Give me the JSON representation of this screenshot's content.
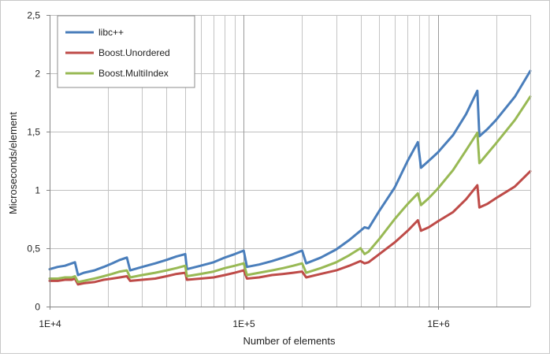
{
  "chart_data": {
    "type": "line",
    "title": "",
    "xlabel": "Number of elements",
    "ylabel": "Microseconds/element",
    "x_scale": "log",
    "xlim": [
      10000,
      3000000
    ],
    "ylim": [
      0,
      2.5
    ],
    "x_ticks": [
      {
        "value": 10000,
        "label": "1E+4"
      },
      {
        "value": 100000,
        "label": "1E+5"
      },
      {
        "value": 1000000,
        "label": "1E+6"
      }
    ],
    "y_ticks": [
      {
        "value": 0,
        "label": "0"
      },
      {
        "value": 0.5,
        "label": "0,5"
      },
      {
        "value": 1,
        "label": "1"
      },
      {
        "value": 1.5,
        "label": "1,5"
      },
      {
        "value": 2,
        "label": "2"
      },
      {
        "value": 2.5,
        "label": "2,5"
      }
    ],
    "grid": {
      "x_major": true,
      "x_minor": true,
      "y_major": true
    },
    "legend_position": "top-left",
    "series": [
      {
        "name": "libc++",
        "color": "#4a7ebb",
        "points": [
          [
            10000,
            0.32
          ],
          [
            11000,
            0.34
          ],
          [
            12000,
            0.35
          ],
          [
            13000,
            0.37
          ],
          [
            13500,
            0.38
          ],
          [
            14000,
            0.27
          ],
          [
            15000,
            0.29
          ],
          [
            17000,
            0.31
          ],
          [
            19000,
            0.34
          ],
          [
            21000,
            0.37
          ],
          [
            23000,
            0.4
          ],
          [
            25000,
            0.42
          ],
          [
            26000,
            0.31
          ],
          [
            30000,
            0.34
          ],
          [
            35000,
            0.37
          ],
          [
            40000,
            0.4
          ],
          [
            45000,
            0.43
          ],
          [
            50000,
            0.45
          ],
          [
            51000,
            0.32
          ],
          [
            60000,
            0.35
          ],
          [
            70000,
            0.38
          ],
          [
            80000,
            0.42
          ],
          [
            90000,
            0.45
          ],
          [
            100000,
            0.48
          ],
          [
            104000,
            0.34
          ],
          [
            120000,
            0.36
          ],
          [
            140000,
            0.39
          ],
          [
            160000,
            0.42
          ],
          [
            180000,
            0.45
          ],
          [
            200000,
            0.48
          ],
          [
            210000,
            0.37
          ],
          [
            250000,
            0.42
          ],
          [
            300000,
            0.49
          ],
          [
            350000,
            0.57
          ],
          [
            400000,
            0.65
          ],
          [
            420000,
            0.68
          ],
          [
            440000,
            0.67
          ],
          [
            500000,
            0.82
          ],
          [
            600000,
            1.02
          ],
          [
            700000,
            1.25
          ],
          [
            790000,
            1.41
          ],
          [
            820000,
            1.19
          ],
          [
            900000,
            1.25
          ],
          [
            1000000,
            1.32
          ],
          [
            1200000,
            1.47
          ],
          [
            1400000,
            1.65
          ],
          [
            1600000,
            1.85
          ],
          [
            1640000,
            1.46
          ],
          [
            1800000,
            1.52
          ],
          [
            2000000,
            1.6
          ],
          [
            2500000,
            1.8
          ],
          [
            3000000,
            2.02
          ]
        ]
      },
      {
        "name": "Boost.Unordered",
        "color": "#be4b48",
        "points": [
          [
            10000,
            0.22
          ],
          [
            11000,
            0.22
          ],
          [
            12000,
            0.23
          ],
          [
            13000,
            0.23
          ],
          [
            13500,
            0.24
          ],
          [
            14000,
            0.19
          ],
          [
            15000,
            0.2
          ],
          [
            17000,
            0.21
          ],
          [
            19000,
            0.23
          ],
          [
            21000,
            0.24
          ],
          [
            23000,
            0.25
          ],
          [
            25000,
            0.26
          ],
          [
            26000,
            0.22
          ],
          [
            30000,
            0.23
          ],
          [
            35000,
            0.24
          ],
          [
            40000,
            0.26
          ],
          [
            45000,
            0.28
          ],
          [
            50000,
            0.29
          ],
          [
            51000,
            0.23
          ],
          [
            60000,
            0.24
          ],
          [
            70000,
            0.25
          ],
          [
            80000,
            0.27
          ],
          [
            90000,
            0.29
          ],
          [
            100000,
            0.31
          ],
          [
            104000,
            0.24
          ],
          [
            120000,
            0.25
          ],
          [
            140000,
            0.27
          ],
          [
            160000,
            0.28
          ],
          [
            180000,
            0.29
          ],
          [
            200000,
            0.3
          ],
          [
            210000,
            0.25
          ],
          [
            250000,
            0.28
          ],
          [
            300000,
            0.31
          ],
          [
            350000,
            0.35
          ],
          [
            400000,
            0.39
          ],
          [
            420000,
            0.37
          ],
          [
            440000,
            0.38
          ],
          [
            500000,
            0.45
          ],
          [
            600000,
            0.55
          ],
          [
            700000,
            0.65
          ],
          [
            790000,
            0.74
          ],
          [
            820000,
            0.65
          ],
          [
            900000,
            0.68
          ],
          [
            1000000,
            0.73
          ],
          [
            1200000,
            0.81
          ],
          [
            1400000,
            0.92
          ],
          [
            1600000,
            1.04
          ],
          [
            1640000,
            0.85
          ],
          [
            1800000,
            0.88
          ],
          [
            2000000,
            0.93
          ],
          [
            2500000,
            1.03
          ],
          [
            3000000,
            1.16
          ]
        ]
      },
      {
        "name": "Boost.MultiIndex",
        "color": "#98b954",
        "points": [
          [
            10000,
            0.24
          ],
          [
            11000,
            0.24
          ],
          [
            12000,
            0.25
          ],
          [
            13000,
            0.25
          ],
          [
            13500,
            0.26
          ],
          [
            14000,
            0.21
          ],
          [
            15000,
            0.22
          ],
          [
            17000,
            0.24
          ],
          [
            19000,
            0.26
          ],
          [
            21000,
            0.28
          ],
          [
            23000,
            0.3
          ],
          [
            25000,
            0.31
          ],
          [
            26000,
            0.25
          ],
          [
            30000,
            0.27
          ],
          [
            35000,
            0.29
          ],
          [
            40000,
            0.31
          ],
          [
            45000,
            0.33
          ],
          [
            50000,
            0.35
          ],
          [
            51000,
            0.26
          ],
          [
            60000,
            0.28
          ],
          [
            70000,
            0.3
          ],
          [
            80000,
            0.33
          ],
          [
            90000,
            0.35
          ],
          [
            100000,
            0.37
          ],
          [
            104000,
            0.27
          ],
          [
            120000,
            0.29
          ],
          [
            140000,
            0.31
          ],
          [
            160000,
            0.33
          ],
          [
            180000,
            0.35
          ],
          [
            200000,
            0.37
          ],
          [
            210000,
            0.29
          ],
          [
            250000,
            0.33
          ],
          [
            300000,
            0.38
          ],
          [
            350000,
            0.44
          ],
          [
            400000,
            0.5
          ],
          [
            420000,
            0.45
          ],
          [
            440000,
            0.47
          ],
          [
            500000,
            0.58
          ],
          [
            600000,
            0.75
          ],
          [
            700000,
            0.88
          ],
          [
            790000,
            0.97
          ],
          [
            820000,
            0.87
          ],
          [
            900000,
            0.93
          ],
          [
            1000000,
            1.01
          ],
          [
            1200000,
            1.17
          ],
          [
            1400000,
            1.34
          ],
          [
            1600000,
            1.49
          ],
          [
            1640000,
            1.23
          ],
          [
            1800000,
            1.31
          ],
          [
            2000000,
            1.4
          ],
          [
            2500000,
            1.6
          ],
          [
            3000000,
            1.8
          ]
        ]
      }
    ]
  }
}
